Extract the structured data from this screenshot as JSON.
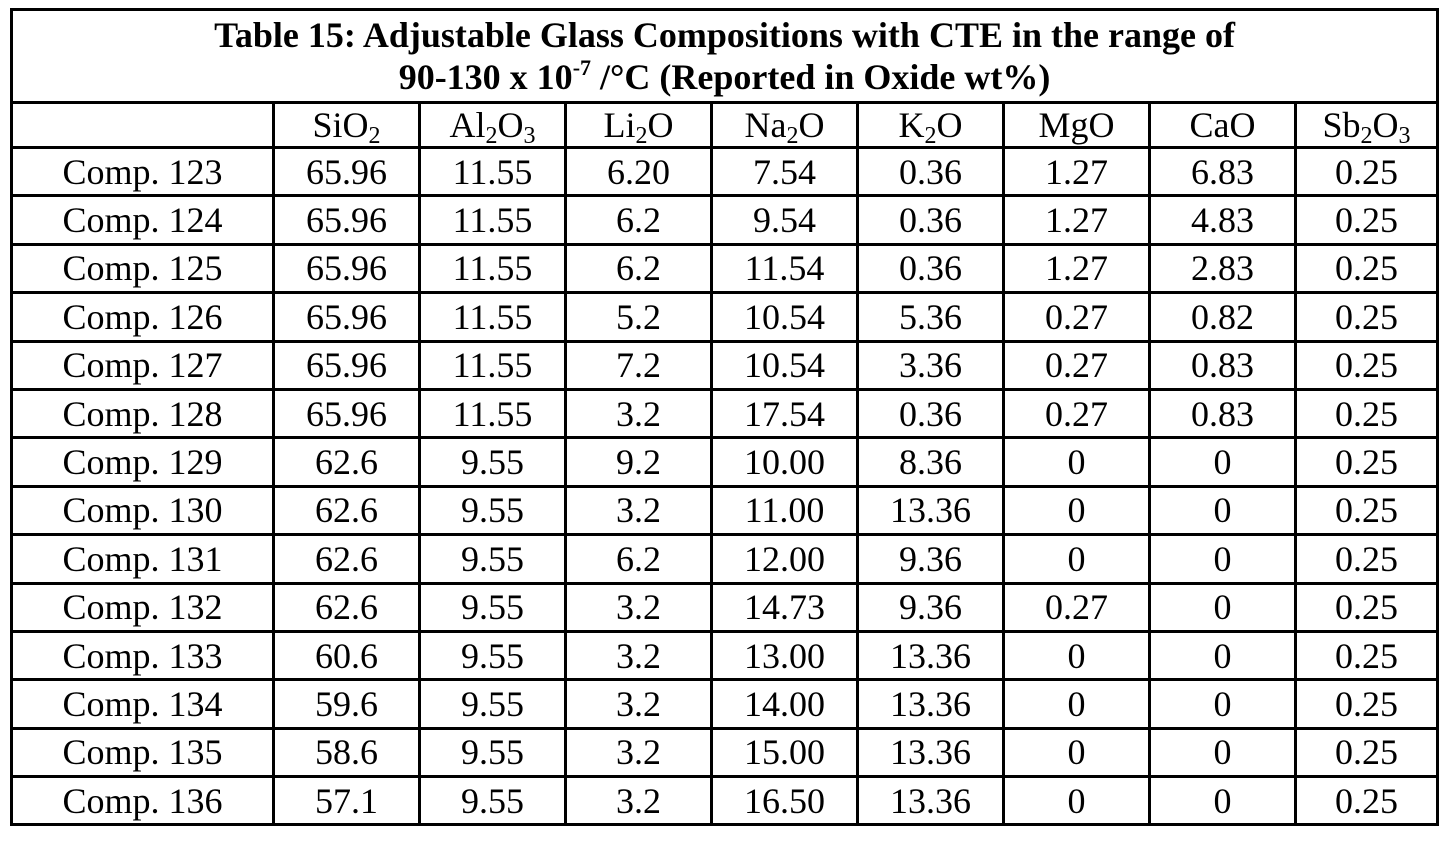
{
  "title": {
    "line1": "Table 15: Adjustable Glass Compositions with CTE in the range of",
    "line2_prefix": "90-130 x 10",
    "line2_exponent": "-7",
    "line2_suffix": " /°C (Reported in Oxide wt%)"
  },
  "columns": [
    {
      "base": "Si",
      "sub1": "",
      "mid": "O",
      "sub2": "2"
    },
    {
      "base": "Al",
      "sub1": "2",
      "mid": "O",
      "sub2": "3"
    },
    {
      "base": "Li",
      "sub1": "2",
      "mid": "O",
      "sub2": ""
    },
    {
      "base": "Na",
      "sub1": "2",
      "mid": "O",
      "sub2": ""
    },
    {
      "base": "K",
      "sub1": "2",
      "mid": "O",
      "sub2": ""
    },
    {
      "base": "MgO",
      "sub1": "",
      "mid": "",
      "sub2": ""
    },
    {
      "base": "CaO",
      "sub1": "",
      "mid": "",
      "sub2": ""
    },
    {
      "base": "Sb",
      "sub1": "2",
      "mid": "O",
      "sub2": "3"
    }
  ],
  "rows": [
    {
      "label": "Comp. 123",
      "values": [
        "65.96",
        "11.55",
        "6.20",
        "7.54",
        "0.36",
        "1.27",
        "6.83",
        "0.25"
      ]
    },
    {
      "label": "Comp. 124",
      "values": [
        "65.96",
        "11.55",
        "6.2",
        "9.54",
        "0.36",
        "1.27",
        "4.83",
        "0.25"
      ]
    },
    {
      "label": "Comp. 125",
      "values": [
        "65.96",
        "11.55",
        "6.2",
        "11.54",
        "0.36",
        "1.27",
        "2.83",
        "0.25"
      ]
    },
    {
      "label": "Comp. 126",
      "values": [
        "65.96",
        "11.55",
        "5.2",
        "10.54",
        "5.36",
        "0.27",
        "0.82",
        "0.25"
      ]
    },
    {
      "label": "Comp. 127",
      "values": [
        "65.96",
        "11.55",
        "7.2",
        "10.54",
        "3.36",
        "0.27",
        "0.83",
        "0.25"
      ]
    },
    {
      "label": "Comp. 128",
      "values": [
        "65.96",
        "11.55",
        "3.2",
        "17.54",
        "0.36",
        "0.27",
        "0.83",
        "0.25"
      ]
    },
    {
      "label": "Comp. 129",
      "values": [
        "62.6",
        "9.55",
        "9.2",
        "10.00",
        "8.36",
        "0",
        "0",
        "0.25"
      ]
    },
    {
      "label": "Comp. 130",
      "values": [
        "62.6",
        "9.55",
        "3.2",
        "11.00",
        "13.36",
        "0",
        "0",
        "0.25"
      ]
    },
    {
      "label": "Comp. 131",
      "values": [
        "62.6",
        "9.55",
        "6.2",
        "12.00",
        "9.36",
        "0",
        "0",
        "0.25"
      ]
    },
    {
      "label": "Comp. 132",
      "values": [
        "62.6",
        "9.55",
        "3.2",
        "14.73",
        "9.36",
        "0.27",
        "0",
        "0.25"
      ]
    },
    {
      "label": "Comp. 133",
      "values": [
        "60.6",
        "9.55",
        "3.2",
        "13.00",
        "13.36",
        "0",
        "0",
        "0.25"
      ]
    },
    {
      "label": "Comp. 134",
      "values": [
        "59.6",
        "9.55",
        "3.2",
        "14.00",
        "13.36",
        "0",
        "0",
        "0.25"
      ]
    },
    {
      "label": "Comp. 135",
      "values": [
        "58.6",
        "9.55",
        "3.2",
        "15.00",
        "13.36",
        "0",
        "0",
        "0.25"
      ]
    },
    {
      "label": "Comp. 136",
      "values": [
        "57.1",
        "9.55",
        "3.2",
        "16.50",
        "13.36",
        "0",
        "0",
        "0.25"
      ]
    }
  ]
}
